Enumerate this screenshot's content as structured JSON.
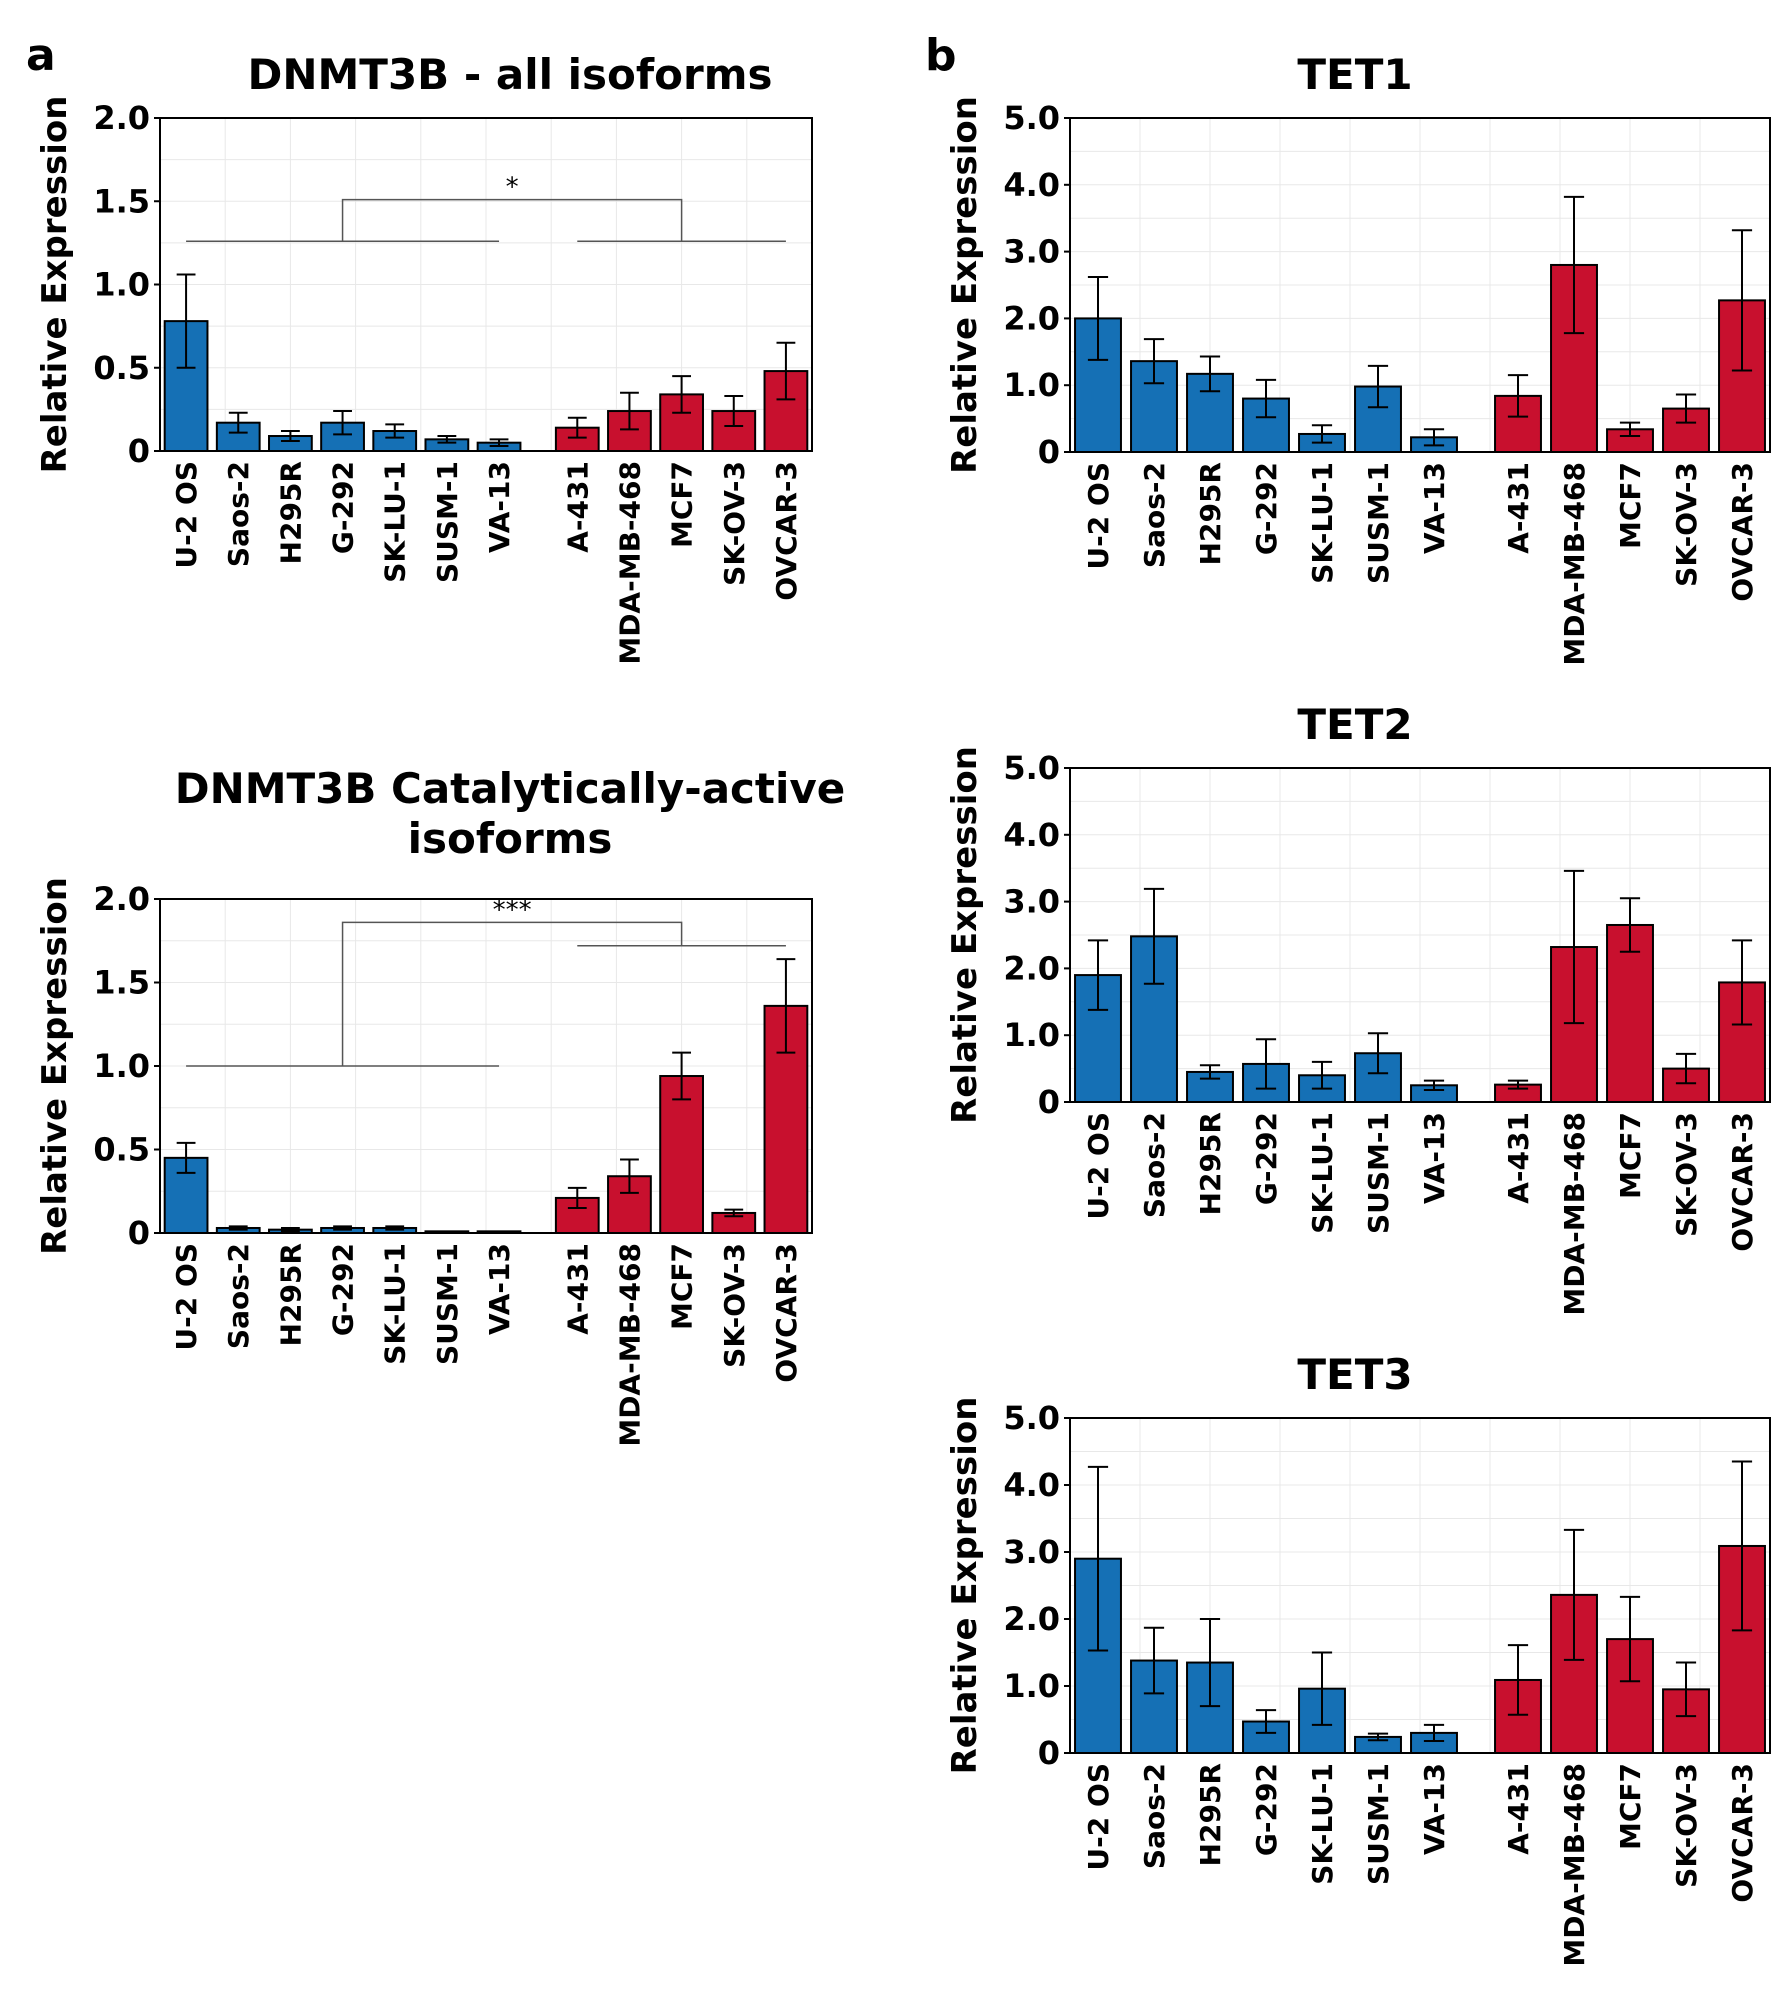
{
  "panels": {
    "a": "a",
    "b": "b"
  },
  "colors": {
    "sarcoma": "#1570b5",
    "carcinoma": "#c8102e",
    "grid": "#e8e8e8",
    "axis": "#000000"
  },
  "chart_data": [
    {
      "id": "dnmt3b_all",
      "type": "bar",
      "title": "DNMT3B - all isoforms",
      "xlabel": "",
      "ylabel": "Relative Expression",
      "ylim": [
        0,
        2.0
      ],
      "yticks": [
        "0",
        "0.5",
        "1.0",
        "1.5",
        "2.0"
      ],
      "ytick_values": [
        0,
        0.5,
        1.0,
        1.5,
        2.0
      ],
      "categories": [
        "U-2 OS",
        "Saos-2",
        "H295R",
        "G-292",
        "SK-LU-1",
        "SUSM-1",
        "VA-13",
        "A-431",
        "MDA-MB-468",
        "MCF7",
        "SK-OV-3",
        "OVCAR-3"
      ],
      "groups": [
        "sarcoma",
        "sarcoma",
        "sarcoma",
        "sarcoma",
        "sarcoma",
        "sarcoma",
        "sarcoma",
        "carcinoma",
        "carcinoma",
        "carcinoma",
        "carcinoma",
        "carcinoma"
      ],
      "values": [
        0.78,
        0.17,
        0.09,
        0.17,
        0.12,
        0.07,
        0.05,
        0.14,
        0.24,
        0.34,
        0.24,
        0.48
      ],
      "errors": [
        0.28,
        0.06,
        0.03,
        0.07,
        0.04,
        0.02,
        0.02,
        0.06,
        0.11,
        0.11,
        0.09,
        0.17
      ],
      "significance": {
        "label": "*",
        "left_group": [
          0,
          6
        ],
        "right_group": [
          7,
          11
        ],
        "group_line_value": 1.26,
        "top_value": 1.51
      }
    },
    {
      "id": "dnmt3b_active",
      "type": "bar",
      "title": "DNMT3B Catalytically-active isoforms",
      "xlabel": "",
      "ylabel": "Relative Expression",
      "ylim": [
        0,
        2.0
      ],
      "yticks": [
        "0",
        "0.5",
        "1.0",
        "1.5",
        "2.0"
      ],
      "ytick_values": [
        0,
        0.5,
        1.0,
        1.5,
        2.0
      ],
      "categories": [
        "U-2 OS",
        "Saos-2",
        "H295R",
        "G-292",
        "SK-LU-1",
        "SUSM-1",
        "VA-13",
        "A-431",
        "MDA-MB-468",
        "MCF7",
        "SK-OV-3",
        "OVCAR-3"
      ],
      "groups": [
        "sarcoma",
        "sarcoma",
        "sarcoma",
        "sarcoma",
        "sarcoma",
        "sarcoma",
        "sarcoma",
        "carcinoma",
        "carcinoma",
        "carcinoma",
        "carcinoma",
        "carcinoma"
      ],
      "values": [
        0.45,
        0.03,
        0.02,
        0.03,
        0.03,
        0.01,
        0.01,
        0.21,
        0.34,
        0.94,
        0.12,
        1.36
      ],
      "errors": [
        0.09,
        0.01,
        0.01,
        0.01,
        0.01,
        0.0,
        0.0,
        0.06,
        0.1,
        0.14,
        0.02,
        0.28
      ],
      "significance": {
        "label": "***",
        "left_group": [
          0,
          6
        ],
        "right_group": [
          7,
          11
        ],
        "group_line_value": 1.0,
        "right_line_value": 1.72,
        "top_value": 1.86
      }
    },
    {
      "id": "tet1",
      "type": "bar",
      "title": "TET1",
      "xlabel": "",
      "ylabel": "Relative Expression",
      "ylim": [
        0,
        5.0
      ],
      "yticks": [
        "0",
        "1.0",
        "2.0",
        "3.0",
        "4.0",
        "5.0"
      ],
      "ytick_values": [
        0,
        1.0,
        2.0,
        3.0,
        4.0,
        5.0
      ],
      "categories": [
        "U-2 OS",
        "Saos-2",
        "H295R",
        "G-292",
        "SK-LU-1",
        "SUSM-1",
        "VA-13",
        "A-431",
        "MDA-MB-468",
        "MCF7",
        "SK-OV-3",
        "OVCAR-3"
      ],
      "groups": [
        "sarcoma",
        "sarcoma",
        "sarcoma",
        "sarcoma",
        "sarcoma",
        "sarcoma",
        "sarcoma",
        "carcinoma",
        "carcinoma",
        "carcinoma",
        "carcinoma",
        "carcinoma"
      ],
      "values": [
        2.0,
        1.36,
        1.17,
        0.8,
        0.27,
        0.98,
        0.22,
        0.84,
        2.8,
        0.34,
        0.65,
        2.27
      ],
      "errors": [
        0.62,
        0.33,
        0.26,
        0.28,
        0.13,
        0.31,
        0.12,
        0.31,
        1.02,
        0.1,
        0.21,
        1.05
      ]
    },
    {
      "id": "tet2",
      "type": "bar",
      "title": "TET2",
      "xlabel": "",
      "ylabel": "Relative Expression",
      "ylim": [
        0,
        5.0
      ],
      "yticks": [
        "0",
        "1.0",
        "2.0",
        "3.0",
        "4.0",
        "5.0"
      ],
      "ytick_values": [
        0,
        1.0,
        2.0,
        3.0,
        4.0,
        5.0
      ],
      "categories": [
        "U-2 OS",
        "Saos-2",
        "H295R",
        "G-292",
        "SK-LU-1",
        "SUSM-1",
        "VA-13",
        "A-431",
        "MDA-MB-468",
        "MCF7",
        "SK-OV-3",
        "OVCAR-3"
      ],
      "groups": [
        "sarcoma",
        "sarcoma",
        "sarcoma",
        "sarcoma",
        "sarcoma",
        "sarcoma",
        "sarcoma",
        "carcinoma",
        "carcinoma",
        "carcinoma",
        "carcinoma",
        "carcinoma"
      ],
      "values": [
        1.9,
        2.48,
        0.45,
        0.57,
        0.4,
        0.73,
        0.25,
        0.26,
        2.32,
        2.65,
        0.5,
        1.79
      ],
      "errors": [
        0.52,
        0.71,
        0.1,
        0.37,
        0.2,
        0.3,
        0.07,
        0.06,
        1.14,
        0.4,
        0.22,
        0.63
      ]
    },
    {
      "id": "tet3",
      "type": "bar",
      "title": "TET3",
      "xlabel": "",
      "ylabel": "Relative Expression",
      "ylim": [
        0,
        5.0
      ],
      "yticks": [
        "0",
        "1.0",
        "2.0",
        "3.0",
        "4.0",
        "5.0"
      ],
      "ytick_values": [
        0,
        1.0,
        2.0,
        3.0,
        4.0,
        5.0
      ],
      "categories": [
        "U-2 OS",
        "Saos-2",
        "H295R",
        "G-292",
        "SK-LU-1",
        "SUSM-1",
        "VA-13",
        "A-431",
        "MDA-MB-468",
        "MCF7",
        "SK-OV-3",
        "OVCAR-3"
      ],
      "groups": [
        "sarcoma",
        "sarcoma",
        "sarcoma",
        "sarcoma",
        "sarcoma",
        "sarcoma",
        "sarcoma",
        "carcinoma",
        "carcinoma",
        "carcinoma",
        "carcinoma",
        "carcinoma"
      ],
      "values": [
        2.9,
        1.38,
        1.35,
        0.47,
        0.96,
        0.24,
        0.3,
        1.09,
        2.36,
        1.7,
        0.95,
        3.09
      ],
      "errors": [
        1.37,
        0.49,
        0.65,
        0.17,
        0.54,
        0.05,
        0.12,
        0.52,
        0.97,
        0.63,
        0.4,
        1.26
      ]
    }
  ]
}
